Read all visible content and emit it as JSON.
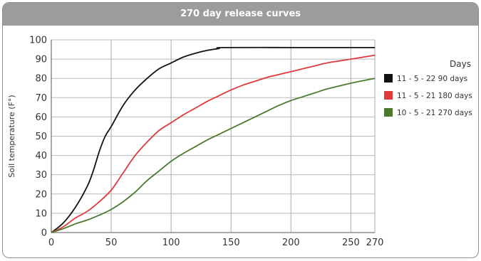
{
  "chart_data": {
    "type": "line",
    "title": "270 day release curves",
    "xlabel": "",
    "ylabel": "Soil temperature (F°)",
    "xlim": [
      0,
      270
    ],
    "ylim": [
      0,
      100
    ],
    "x_ticks": [
      0,
      50,
      100,
      150,
      200,
      250,
      270
    ],
    "y_ticks": [
      0,
      10,
      20,
      30,
      40,
      50,
      60,
      70,
      80,
      90,
      100
    ],
    "grid": true,
    "legend_title": "Days",
    "legend_position": "right",
    "series": [
      {
        "name": "11 - 5 - 22   90 days",
        "color": "#111111",
        "x": [
          0,
          10,
          20,
          30,
          35,
          40,
          45,
          50,
          60,
          70,
          80,
          90,
          100,
          110,
          120,
          130,
          140,
          143,
          200,
          250,
          270
        ],
        "y": [
          0,
          5,
          13,
          24,
          32,
          42,
          50,
          55,
          66,
          74,
          80,
          85,
          88,
          91,
          93,
          94.5,
          95.5,
          96,
          96,
          96,
          96
        ]
      },
      {
        "name": "11 - 5 - 21   180 days",
        "color": "#e03a3a",
        "x": [
          0,
          10,
          20,
          30,
          40,
          50,
          60,
          70,
          80,
          90,
          100,
          110,
          120,
          130,
          140,
          150,
          160,
          170,
          180,
          190,
          200,
          210,
          220,
          230,
          240,
          250,
          260,
          270
        ],
        "y": [
          0,
          3,
          7.5,
          11,
          16,
          22,
          31,
          40,
          47,
          53,
          57,
          61,
          64.5,
          68,
          71,
          74,
          76.5,
          78.5,
          80.5,
          82,
          83.5,
          85,
          86.5,
          88,
          89,
          90,
          91,
          92
        ]
      },
      {
        "name": "10 - 5 - 21   270 days",
        "color": "#4a7a2c",
        "x": [
          0,
          10,
          20,
          30,
          40,
          50,
          60,
          70,
          80,
          90,
          100,
          110,
          120,
          130,
          140,
          150,
          160,
          170,
          180,
          190,
          200,
          210,
          220,
          230,
          240,
          250,
          260,
          270
        ],
        "y": [
          0,
          2,
          4.5,
          6.5,
          9,
          12,
          16,
          21,
          27,
          32,
          37,
          41,
          44.5,
          48,
          51,
          54,
          57,
          60,
          63,
          66,
          68.5,
          70.5,
          72.5,
          74.5,
          76,
          77.5,
          78.8,
          80
        ]
      }
    ]
  }
}
